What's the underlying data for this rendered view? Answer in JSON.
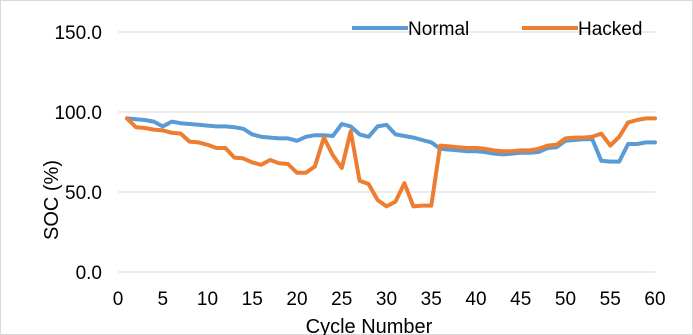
{
  "chart_data": {
    "type": "line",
    "xlabel": "Cycle Number",
    "ylabel": "SOC (%)",
    "xlim": [
      0,
      60
    ],
    "ylim": [
      0,
      150
    ],
    "x_ticks": [
      "0",
      "5",
      "10",
      "15",
      "20",
      "25",
      "30",
      "35",
      "40",
      "45",
      "50",
      "55",
      "60"
    ],
    "y_ticks": [
      "0.0",
      "50.0",
      "100.0",
      "150.0"
    ],
    "grid": "horizontal",
    "legend_position": "top-right",
    "x": [
      1,
      2,
      3,
      4,
      5,
      6,
      7,
      8,
      9,
      10,
      11,
      12,
      13,
      14,
      15,
      16,
      17,
      18,
      19,
      20,
      21,
      22,
      23,
      24,
      25,
      26,
      27,
      28,
      29,
      30,
      31,
      32,
      33,
      34,
      35,
      36,
      37,
      38,
      39,
      40,
      41,
      42,
      43,
      44,
      45,
      46,
      47,
      48,
      49,
      50,
      51,
      52,
      53,
      54,
      55,
      56,
      57,
      58,
      59,
      60
    ],
    "series": [
      {
        "name": "Normal",
        "color": "#5B9BD5",
        "values": [
          96.0,
          95.5,
          95.0,
          94.0,
          91.0,
          94.0,
          93.0,
          92.5,
          92.0,
          91.5,
          91.0,
          91.0,
          90.5,
          89.5,
          86.0,
          84.5,
          84.0,
          83.5,
          83.5,
          82.0,
          84.5,
          85.5,
          85.5,
          85.0,
          92.5,
          91.0,
          86.0,
          84.5,
          91.0,
          92.0,
          86.0,
          85.0,
          84.0,
          82.5,
          81.0,
          77.0,
          76.5,
          76.0,
          75.5,
          75.5,
          75.0,
          74.0,
          73.5,
          74.0,
          74.5,
          74.5,
          75.0,
          77.5,
          78.0,
          82.0,
          82.5,
          83.0,
          83.0,
          69.5,
          69.0,
          69.0,
          80.0,
          80.0,
          81.0,
          81.0
        ]
      },
      {
        "name": "Hacked",
        "color": "#ED7D31",
        "values": [
          96.0,
          90.5,
          90.0,
          89.0,
          88.5,
          87.0,
          86.5,
          81.5,
          81.0,
          79.5,
          77.5,
          77.5,
          71.5,
          71.0,
          68.5,
          67.0,
          70.0,
          68.0,
          67.5,
          62.0,
          62.0,
          66.0,
          84.0,
          73.0,
          65.0,
          88.0,
          57.0,
          55.0,
          45.0,
          41.0,
          44.0,
          55.5,
          41.0,
          41.5,
          41.5,
          79.0,
          78.5,
          78.0,
          77.5,
          77.5,
          77.0,
          76.0,
          75.5,
          75.5,
          76.0,
          76.0,
          77.0,
          79.0,
          79.5,
          83.5,
          84.0,
          84.0,
          84.5,
          86.5,
          79.0,
          84.5,
          93.5,
          95.0,
          96.0,
          96.0
        ]
      }
    ]
  }
}
